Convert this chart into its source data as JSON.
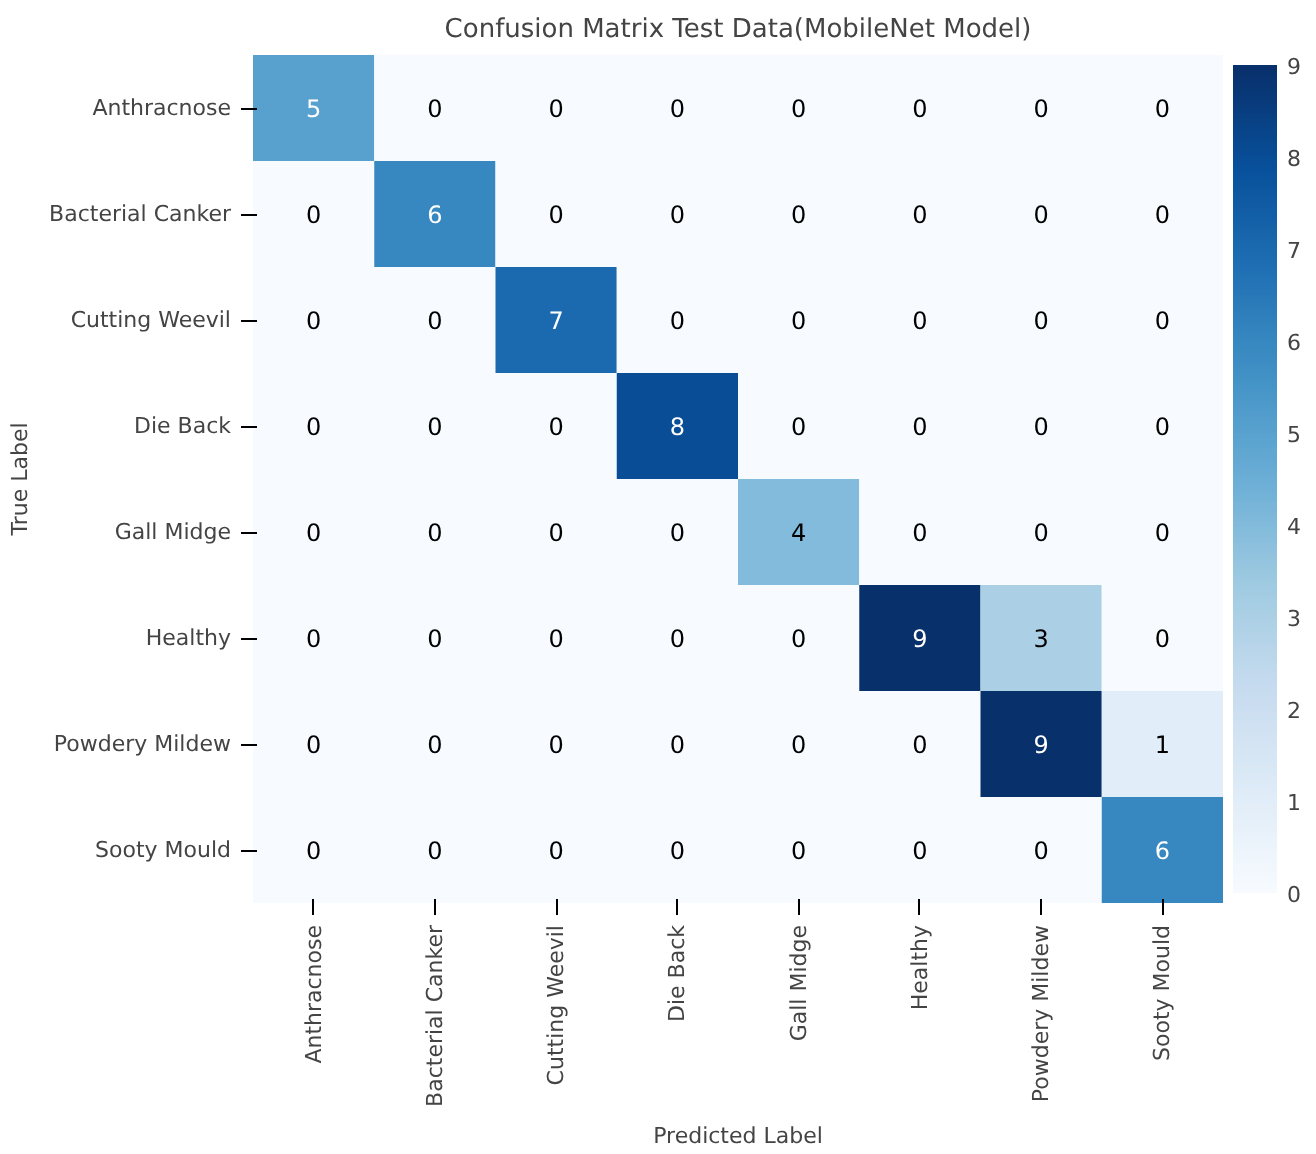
{
  "chart_data": {
    "type": "heatmap",
    "title": "Confusion Matrix Test Data(MobileNet Model)",
    "xlabel": "Predicted Label",
    "ylabel": "True Label",
    "categories": [
      "Anthracnose",
      "Bacterial Canker",
      "Cutting Weevil",
      "Die Back",
      "Gall Midge",
      "Healthy",
      "Powdery Mildew",
      "Sooty Mould"
    ],
    "y_categories": [
      "Anthracnose",
      "Bacterial Canker",
      "Cutting Weevil",
      "Die Back",
      "Gall Midge",
      "Healthy",
      "Powdery Mildew",
      "Sooty Mould"
    ],
    "cells": [
      [
        5,
        0,
        0,
        0,
        0,
        0,
        0,
        0
      ],
      [
        0,
        6,
        0,
        0,
        0,
        0,
        0,
        0
      ],
      [
        0,
        0,
        7,
        0,
        0,
        0,
        0,
        0
      ],
      [
        0,
        0,
        0,
        8,
        0,
        0,
        0,
        0
      ],
      [
        0,
        0,
        0,
        0,
        4,
        0,
        0,
        0
      ],
      [
        0,
        0,
        0,
        0,
        0,
        9,
        3,
        0
      ],
      [
        0,
        0,
        0,
        0,
        0,
        0,
        9,
        1
      ],
      [
        0,
        0,
        0,
        0,
        0,
        0,
        0,
        6
      ]
    ],
    "clim": [
      0,
      9
    ],
    "cticks": [
      0,
      1,
      2,
      3,
      4,
      5,
      6,
      7,
      8,
      9
    ],
    "data_labels": true,
    "grid": false
  }
}
